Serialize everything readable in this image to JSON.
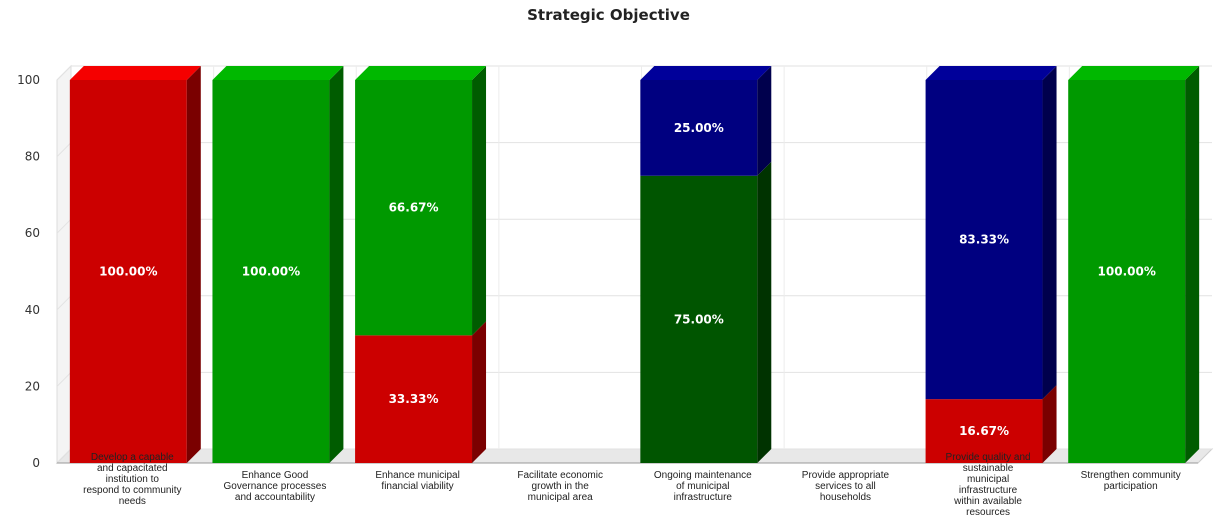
{
  "chart_data": {
    "type": "bar",
    "stacked": true,
    "title": "Strategic Objective",
    "xlabel": "",
    "ylabel": "",
    "ylim": [
      0,
      100
    ],
    "yticks": [
      "0",
      "20",
      "40",
      "60",
      "80",
      "100"
    ],
    "grid": true,
    "categories": [
      "Develop a capable and capacitated institution to respond to community needs",
      "Enhance Good Governance processes and accountability",
      "Enhance municipal financial viability",
      "Facilitate economic growth in the municipal area",
      "Ongoing maintenance of municipal infrastructure",
      "Provide appropriate services to all households",
      "Provide quality and sustainable municipal infrastructure within available resources",
      "Strengthen community participation"
    ],
    "category_lines": [
      [
        "Develop a capable",
        "and capacitated",
        "institution to",
        "respond to community",
        "needs"
      ],
      [
        "Enhance Good",
        "Governance processes",
        "and accountability"
      ],
      [
        "Enhance municipal",
        "financial viability"
      ],
      [
        "Facilitate economic",
        "growth in the",
        "municipal area"
      ],
      [
        "Ongoing maintenance",
        "of municipal",
        "infrastructure"
      ],
      [
        "Provide appropriate",
        "services to all",
        "households"
      ],
      [
        "Provide quality and",
        "sustainable",
        "municipal",
        "infrastructure",
        "within available",
        "resources"
      ],
      [
        "Strengthen community",
        "participation"
      ]
    ],
    "stacks": [
      [
        {
          "value": 100,
          "label": "100.00%",
          "color": "#cc0000"
        }
      ],
      [
        {
          "value": 100,
          "label": "100.00%",
          "color": "#009900"
        }
      ],
      [
        {
          "value": 33.33,
          "label": "33.33%",
          "color": "#cc0000"
        },
        {
          "value": 66.67,
          "label": "66.67%",
          "color": "#009900"
        }
      ],
      [],
      [
        {
          "value": 75,
          "label": "75.00%",
          "color": "#005500"
        },
        {
          "value": 25,
          "label": "25.00%",
          "color": "#000080"
        }
      ],
      [],
      [
        {
          "value": 16.67,
          "label": "16.67%",
          "color": "#cc0000"
        },
        {
          "value": 83.33,
          "label": "83.33%",
          "color": "#000080"
        }
      ],
      [
        {
          "value": 100,
          "label": "100.00%",
          "color": "#009900"
        }
      ]
    ]
  }
}
